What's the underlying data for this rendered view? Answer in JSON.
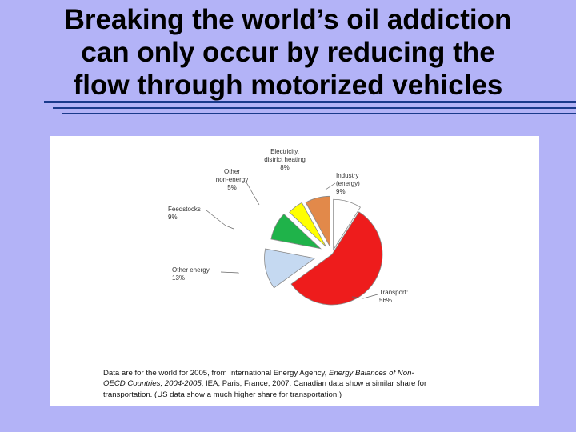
{
  "slide": {
    "title_lines": [
      "Breaking the world’s oil addiction",
      "can only occur by reducing the",
      "flow through motorized vehicles"
    ],
    "accent_color": "#1a3a8c",
    "background_color": "#b3b3f7"
  },
  "chart_data": {
    "type": "pie",
    "exploded": true,
    "slices": [
      {
        "label_lines": [
          "Industry",
          "(energy)"
        ],
        "value": 9,
        "value_label": "9%",
        "color": "#ffffff"
      },
      {
        "label_lines": [
          "Transport:"
        ],
        "value": 56,
        "value_label": "56%",
        "color": "#ee1c1c"
      },
      {
        "label_lines": [
          "Other energy"
        ],
        "value": 13,
        "value_label": "13%",
        "color": "#c5d9f1"
      },
      {
        "label_lines": [
          "Feedstocks"
        ],
        "value": 9,
        "value_label": "9%",
        "color": "#1fb34a"
      },
      {
        "label_lines": [
          "Other",
          "non-energy"
        ],
        "value": 5,
        "value_label": "5%",
        "color": "#ffff00"
      },
      {
        "label_lines": [
          "Electricity,",
          "district heating"
        ],
        "value": 8,
        "value_label": "8%",
        "color": "#e2894a"
      }
    ]
  },
  "caption": {
    "line1_pre": "Data are for the world for 2005, from International Energy Agency, ",
    "line1_italic": "Energy Balances of Non-",
    "line2_italic": "OECD Countries, 2004-2005",
    "line2_post": ", IEA, Paris, France, 2007. Canadian data show a similar share for",
    "line3": "transportation. (US data show a much higher share for transportation.)"
  }
}
